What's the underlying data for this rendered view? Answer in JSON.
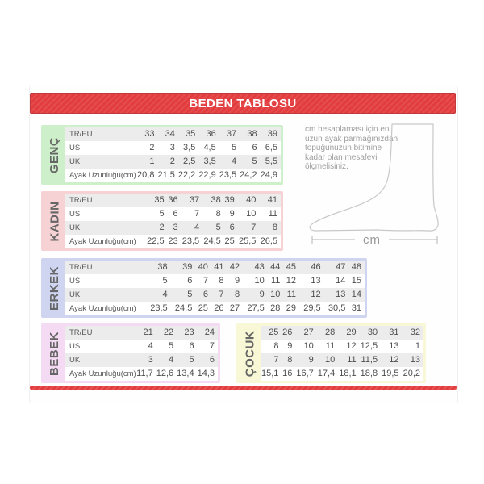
{
  "header": {
    "title": "BEDEN TABLOSU"
  },
  "note": {
    "lines": [
      "cm hesaplaması için en",
      "uzun ayak parmağınızdan",
      "topuğunuzun bitimine",
      "kadar olan mesafeyi",
      "ölçmelisiniz."
    ],
    "cm_label": "cm"
  },
  "row_labels": [
    "TR/EU",
    "US",
    "UK",
    "Ayak Uzunluğu(cm)"
  ],
  "sections": [
    {
      "id": "genc",
      "label": "GENÇ",
      "color": "#cdefca",
      "show_row_labels": true,
      "rows": [
        [
          "33",
          "34",
          "35",
          "36",
          "37",
          "38",
          "39"
        ],
        [
          "2",
          "3",
          "3,5",
          "4,5",
          "5",
          "6",
          "6,5"
        ],
        [
          "1",
          "2",
          "2,5",
          "3,5",
          "4",
          "5",
          "5,5"
        ],
        [
          "20,8",
          "21,5",
          "22,2",
          "22,9",
          "23,5",
          "24,2",
          "24,9"
        ]
      ]
    },
    {
      "id": "kadin",
      "label": "KADIN",
      "color": "#f7d2d5",
      "show_row_labels": true,
      "rows": [
        [
          "35",
          "36",
          "37",
          "38",
          "39",
          "40",
          "41"
        ],
        [
          "5",
          "6",
          "7",
          "8",
          "9",
          "10",
          "11"
        ],
        [
          "2",
          "3",
          "4",
          "5",
          "6",
          "7",
          "8"
        ],
        [
          "22,5",
          "23",
          "23,5",
          "24,5",
          "25",
          "25,5",
          "26,5"
        ]
      ]
    },
    {
      "id": "erkek",
      "label": "ERKEK",
      "color": "#cfd5f1",
      "show_row_labels": true,
      "rows": [
        [
          "38",
          "39",
          "40",
          "41",
          "42",
          "43",
          "44",
          "45",
          "46",
          "47",
          "48"
        ],
        [
          "5",
          "6",
          "7",
          "8",
          "9",
          "10",
          "11",
          "12",
          "13",
          "14",
          "15"
        ],
        [
          "4",
          "5",
          "6",
          "7",
          "8",
          "9",
          "10",
          "11",
          "12",
          "13",
          "14"
        ],
        [
          "23,5",
          "24,5",
          "25",
          "26",
          "27",
          "27,5",
          "28",
          "29",
          "29,5",
          "30,5",
          "31"
        ]
      ]
    },
    {
      "id": "bebek",
      "label": "BEBEK",
      "color": "#f4daf2",
      "show_row_labels": true,
      "rows": [
        [
          "21",
          "22",
          "23",
          "24"
        ],
        [
          "4",
          "5",
          "6",
          "7"
        ],
        [
          "3",
          "4",
          "5",
          "6"
        ],
        [
          "11,7",
          "12,6",
          "13,4",
          "14,3"
        ]
      ]
    },
    {
      "id": "cocuk",
      "label": "ÇOCUK",
      "color": "#f8f8d7",
      "show_row_labels": false,
      "rows": [
        [
          "25",
          "26",
          "27",
          "28",
          "29",
          "30",
          "31",
          "32"
        ],
        [
          "8",
          "9",
          "10",
          "11",
          "12",
          "12,5",
          "13",
          "1"
        ],
        [
          "7",
          "8",
          "9",
          "10",
          "11",
          "11,5",
          "12",
          "13"
        ],
        [
          "15,1",
          "16",
          "16,7",
          "17,4",
          "18,1",
          "18,8",
          "19,5",
          "20,2"
        ]
      ]
    }
  ],
  "colors": {
    "accent_red": "#e23c3e",
    "row_stripe": "#ececec",
    "text": "#4e4e4e",
    "foot_outline": "#c8c8c8"
  }
}
